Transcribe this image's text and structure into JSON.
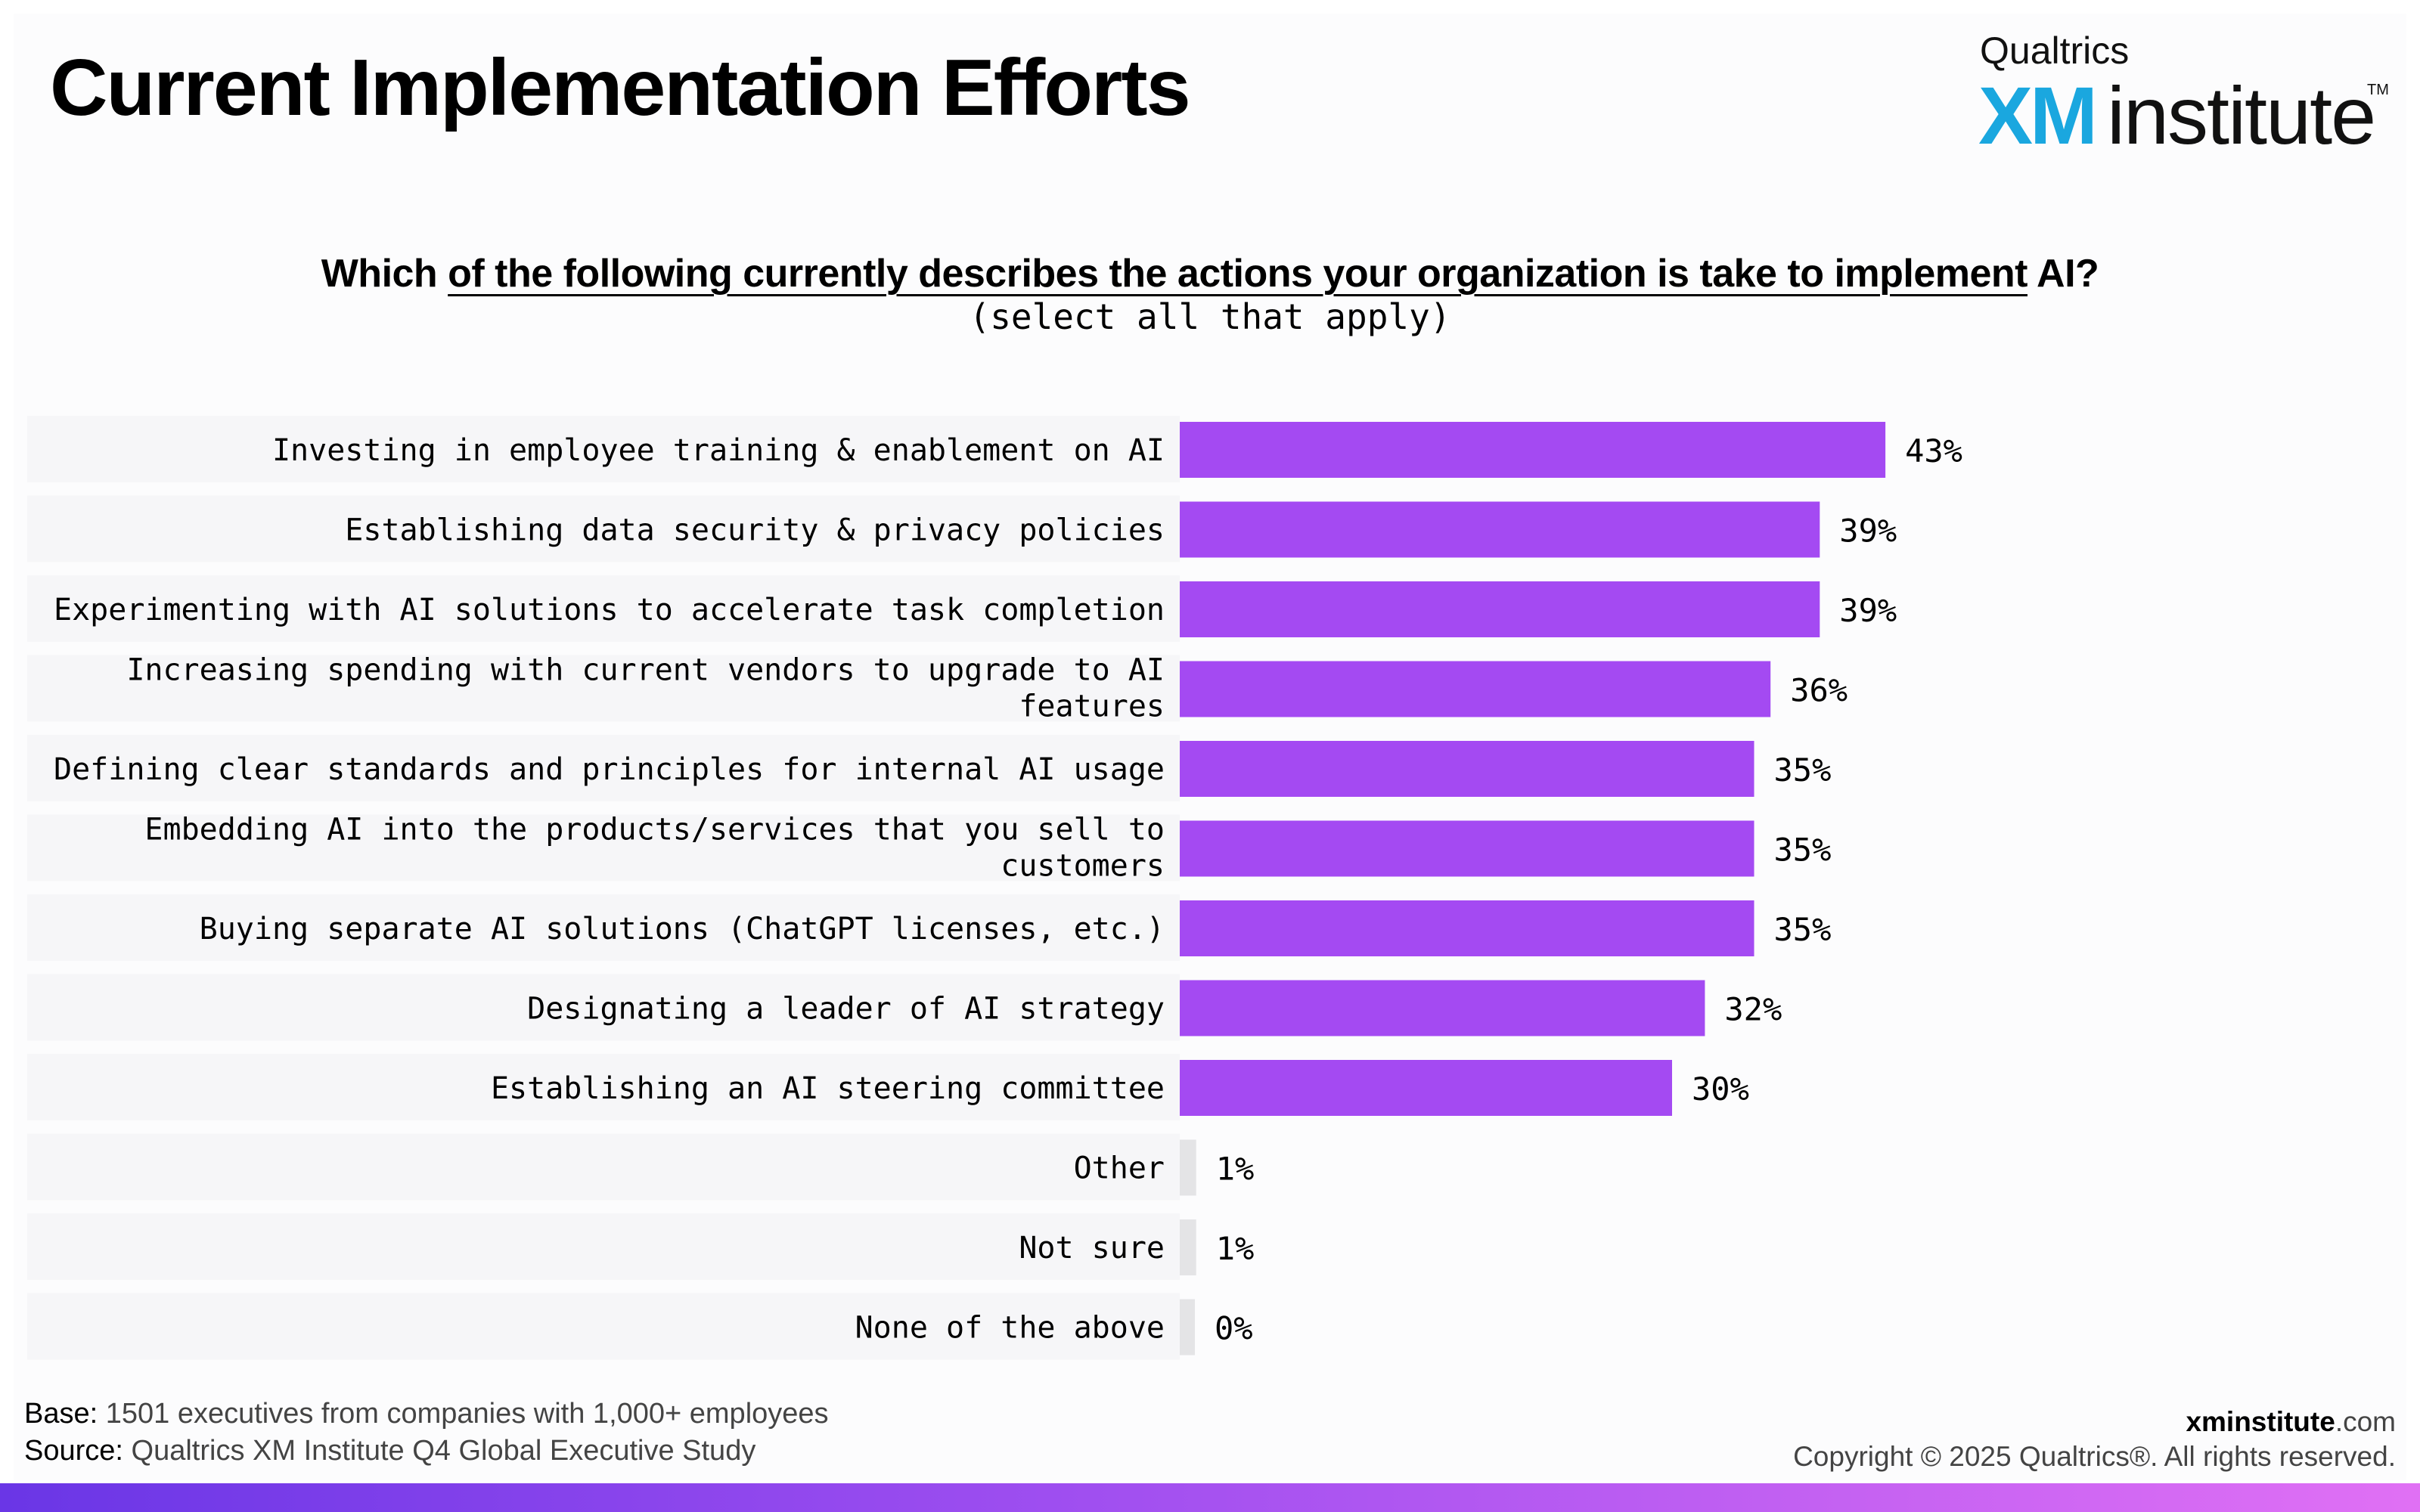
{
  "title": "Current Implementation Efforts",
  "logo": {
    "brand": "Qualtrics",
    "xm": "XM",
    "institute": "institute",
    "tm": "TM"
  },
  "question": {
    "lead": "Which ",
    "underlined": "of the following currently describes the actions your organization is take to implement",
    "tail": " AI?",
    "note": "(select all that apply)"
  },
  "colors": {
    "bar": "#a44af2",
    "minor_bar": "#e4e4e6",
    "bottom_gradient": [
      "#6a36e6",
      "#e070f4"
    ]
  },
  "chart_data": {
    "type": "bar",
    "orientation": "horizontal",
    "categories": [
      "Investing in employee training & enablement on AI",
      "Establishing data security & privacy policies",
      "Experimenting with AI solutions to accelerate task completion",
      "Increasing spending with current vendors to upgrade to AI features",
      "Defining clear standards and principles for internal AI usage",
      "Embedding AI into the products/services that you sell to customers",
      "Buying separate AI solutions (ChatGPT licenses, etc.)",
      "Designating a leader of AI strategy",
      "Establishing an AI steering committee",
      "Other",
      "Not sure",
      "None of the above"
    ],
    "category_lines": [
      [
        "Investing in employee training & enablement on AI"
      ],
      [
        "Establishing data security & privacy policies"
      ],
      [
        "Experimenting with AI solutions to accelerate task completion"
      ],
      [
        "Increasing spending with current vendors to upgrade to AI",
        "features"
      ],
      [
        "Defining clear standards and principles for internal AI usage"
      ],
      [
        "Embedding AI into the products/services that you sell to",
        "customers"
      ],
      [
        "Buying separate AI solutions (ChatGPT licenses, etc.)"
      ],
      [
        "Designating a leader of AI strategy"
      ],
      [
        "Establishing an AI steering committee"
      ],
      [
        "Other"
      ],
      [
        "Not sure"
      ],
      [
        "None of the above"
      ]
    ],
    "values": [
      43,
      39,
      39,
      36,
      35,
      35,
      35,
      32,
      30,
      1,
      1,
      0
    ],
    "value_labels": [
      "43%",
      "39%",
      "39%",
      "36%",
      "35%",
      "35%",
      "35%",
      "32%",
      "30%",
      "1%",
      "1%",
      "0%"
    ],
    "highlighted": [
      true,
      true,
      true,
      true,
      true,
      true,
      true,
      true,
      true,
      false,
      false,
      false
    ],
    "unit": "%",
    "xlim": [
      0,
      100
    ],
    "grid": false,
    "legend": "none"
  },
  "footer": {
    "base_key": "Base:",
    "base_text": " 1501 executives from companies with 1,000+ employees",
    "source_key": "Source:",
    "source_text": " Qualtrics XM Institute Q4 Global Executive Study",
    "site_bold": "xminstitute",
    "site_rest": ".com",
    "copyright": "Copyright © 2025 Qualtrics®. All rights reserved."
  }
}
